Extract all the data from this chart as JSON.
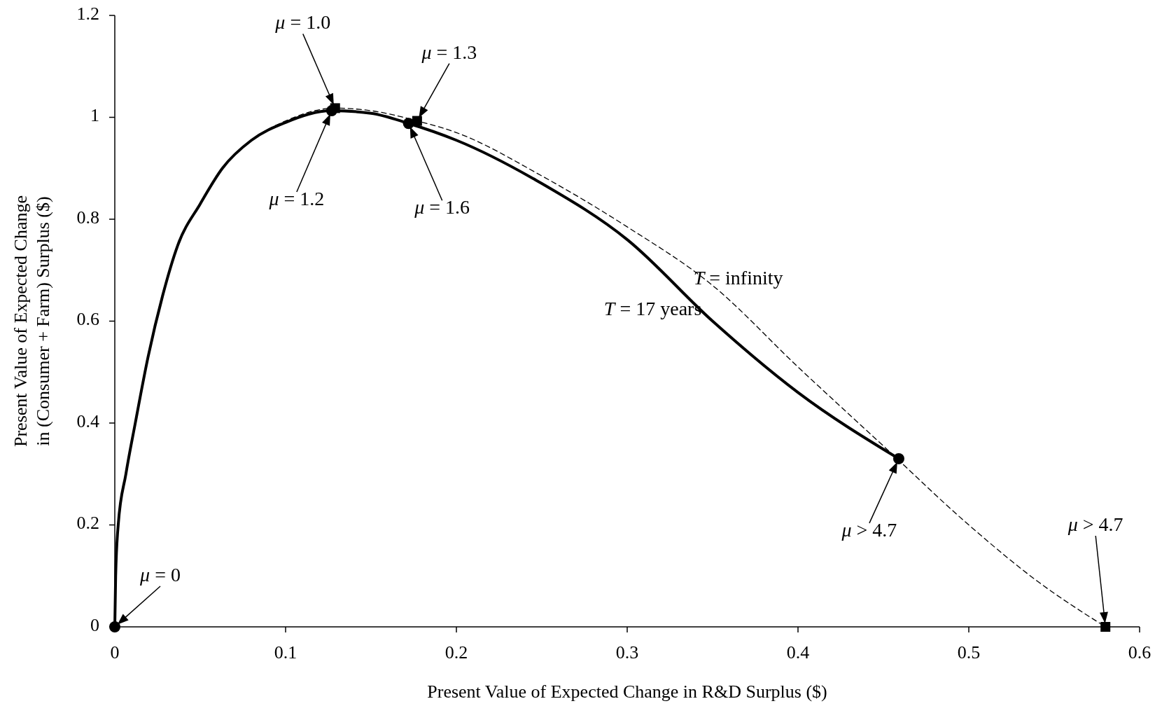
{
  "chart_data": {
    "type": "line",
    "xlabel": "Present Value of Expected Change in R&D Surplus ($)",
    "ylabel": "Present Value of Expected Change\nin (Consumer + Farm) Surplus ($)",
    "xlim": [
      0,
      0.6
    ],
    "ylim": [
      0,
      1.2
    ],
    "xticks": [
      0,
      0.1,
      0.2,
      0.3,
      0.4,
      0.5,
      0.6
    ],
    "yticks": [
      0,
      0.2,
      0.4,
      0.6,
      0.8,
      1,
      1.2
    ],
    "grid": false,
    "legend": false,
    "series": [
      {
        "type": "line",
        "name": "T = 17 years",
        "color": "#000000",
        "line_style": "solid",
        "marker": "none",
        "x": [
          0,
          0.0005,
          0.002,
          0.0065,
          0.012,
          0.0195,
          0.028,
          0.037,
          0.05,
          0.063,
          0.08,
          0.1,
          0.127,
          0.15,
          0.172,
          0.2,
          0.25,
          0.3,
          0.35,
          0.4,
          0.459
        ],
        "values": [
          0,
          0.1,
          0.2,
          0.3,
          0.4,
          0.53,
          0.65,
          0.75,
          0.83,
          0.9,
          0.955,
          0.99,
          1.013,
          1.008,
          0.988,
          0.955,
          0.87,
          0.76,
          0.6,
          0.46,
          0.33
        ]
      },
      {
        "type": "line",
        "name": "T = infinity",
        "color": "#000000",
        "line_style": "dashed",
        "marker": "none",
        "x": [
          0,
          0.0005,
          0.002,
          0.0065,
          0.012,
          0.0195,
          0.028,
          0.037,
          0.05,
          0.063,
          0.08,
          0.1,
          0.129,
          0.15,
          0.177,
          0.2,
          0.25,
          0.3,
          0.35,
          0.4,
          0.45,
          0.5,
          0.54,
          0.58
        ],
        "values": [
          0,
          0.1,
          0.2,
          0.3,
          0.4,
          0.53,
          0.65,
          0.75,
          0.83,
          0.9,
          0.955,
          0.993,
          1.018,
          1.013,
          0.993,
          0.97,
          0.885,
          0.785,
          0.67,
          0.51,
          0.355,
          0.2,
          0.09,
          0
        ]
      },
      {
        "type": "scatter",
        "color": "#000000",
        "marker": "circle",
        "x": [
          0,
          0.127,
          0.172,
          0.459
        ],
        "values": [
          0,
          1.013,
          0.988,
          0.33
        ]
      },
      {
        "type": "scatter",
        "color": "#000000",
        "marker": "square",
        "x": [
          0.129,
          0.177,
          0.58
        ],
        "values": [
          1.018,
          0.993,
          0
        ]
      }
    ],
    "annotations": [
      {
        "text": "μ = 0",
        "x": 0,
        "y": 0
      },
      {
        "text": "μ = 1.0",
        "x": 0.129,
        "y": 1.018
      },
      {
        "text": "μ = 1.3",
        "x": 0.177,
        "y": 0.993
      },
      {
        "text": "μ = 1.2",
        "x": 0.127,
        "y": 1.013
      },
      {
        "text": "μ = 1.6",
        "x": 0.172,
        "y": 0.988
      },
      {
        "text": "μ > 4.7",
        "x": 0.459,
        "y": 0.33
      },
      {
        "text": "μ > 4.7",
        "x": 0.58,
        "y": 0
      }
    ]
  }
}
